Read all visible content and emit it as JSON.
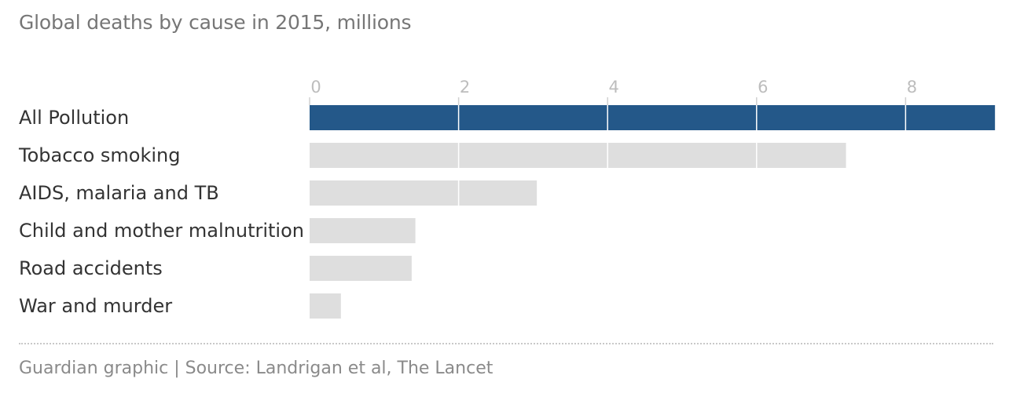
{
  "title": "Global deaths by cause in 2015, millions",
  "source": "Guardian graphic | Source: Landrigan et al, The Lancet",
  "colors": {
    "highlight": "#245889",
    "default": "#dedede",
    "gridline": "#ffffff",
    "tick_text": "#bdbdbd",
    "label_text": "#333333"
  },
  "chart_data": {
    "type": "bar",
    "orientation": "horizontal",
    "title": "Global deaths by cause in 2015, millions",
    "categories": [
      "All Pollution",
      "Tobacco smoking",
      "AIDS, malaria and TB",
      "Child and mother malnutrition",
      "Road accidents",
      "War and murder"
    ],
    "values": [
      9.2,
      7.2,
      3.05,
      1.42,
      1.37,
      0.42
    ],
    "highlighted": [
      "All Pollution"
    ],
    "xticks": [
      0,
      2,
      4,
      6,
      8
    ],
    "xlim": [
      0,
      9.2
    ],
    "xlabel": "",
    "ylabel": "",
    "grid": true,
    "legend": "none"
  }
}
